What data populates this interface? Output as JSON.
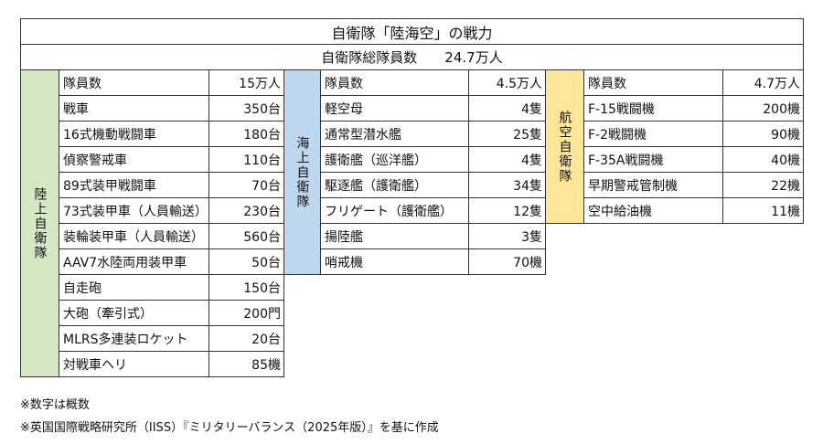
{
  "header": {
    "title": "自衛隊「陸海空」の戦力"
  },
  "total": {
    "label": "自衛隊総隊員数",
    "value": "24.7万人"
  },
  "sections": [
    {
      "label": "陸上自衛隊",
      "rows": [
        [
          "隊員数",
          "15万人"
        ],
        [
          "戦車",
          "350台"
        ],
        [
          "16式機動戦闘車",
          "180台"
        ],
        [
          "偵察警戒車",
          "110台"
        ],
        [
          "89式装甲戦闘車",
          "70台"
        ],
        [
          "73式装甲車（人員輸送）",
          "230台"
        ],
        [
          "装輪装甲車（人員輸送）",
          "560台"
        ],
        [
          "AAV7水陸両用装甲車",
          "50台"
        ],
        [
          "自走砲",
          "150台"
        ],
        [
          "大砲（牽引式）",
          "200門"
        ],
        [
          "MLRS多連装ロケット",
          "20台"
        ],
        [
          "対戦車ヘリ",
          "85機"
        ]
      ]
    },
    {
      "label": "海上自衛隊",
      "rows": [
        [
          "隊員数",
          "4.5万人"
        ],
        [
          "軽空母",
          "4隻"
        ],
        [
          "通常型潜水艦",
          "25隻"
        ],
        [
          "護衛艦（巡洋艦）",
          "4隻"
        ],
        [
          "駆逐艦（護衛艦）",
          "34隻"
        ],
        [
          "フリゲート（護衛艦）",
          "12隻"
        ],
        [
          "揚陸艦",
          "3隻"
        ],
        [
          "哨戒機",
          "70機"
        ]
      ]
    },
    {
      "label": "航空自衛隊",
      "rows": [
        [
          "隊員数",
          "4.7万人"
        ],
        [
          "F-15戦闘機",
          "200機"
        ],
        [
          "F-2戦闘機",
          "90機"
        ],
        [
          "F-35A戦闘機",
          "40機"
        ],
        [
          "早期警戒管制機",
          "22機"
        ],
        [
          "空中給油機",
          "11機"
        ]
      ]
    }
  ],
  "notes": [
    "※数字は概数",
    "※英国国際戦略研究所（IISS）『ミリタリーバランス（2025年版）』を基に作成"
  ]
}
